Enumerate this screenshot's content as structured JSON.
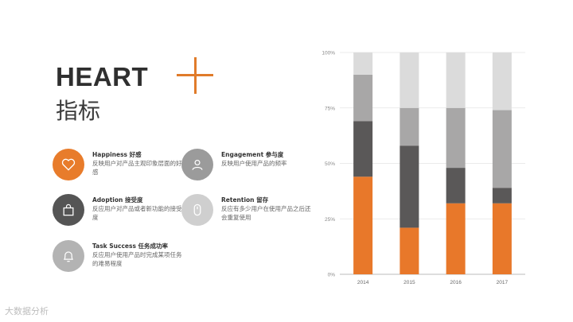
{
  "slide": {
    "title": "HEART",
    "subtitle": "指标"
  },
  "metrics": [
    {
      "name": "Happiness 好感",
      "desc": "反映用户对产品主观印象层面的好感",
      "icon": "heart-icon",
      "color": "#e87c2b"
    },
    {
      "name": "Engagement 参与度",
      "desc": "反映用户使用产品的频率",
      "icon": "users-icon",
      "color": "#9b9b9b"
    },
    {
      "name": "Adoption 接受度",
      "desc": "反应用户对产品或者新功能的接受度",
      "icon": "shopping-bag-icon",
      "color": "#555555"
    },
    {
      "name": "Retention 留存",
      "desc": "反应有多少用户在使用产品之后还会重复使用",
      "icon": "mouse-icon",
      "color": "#cfcfcf"
    },
    {
      "name": "Task Success 任务成功率",
      "desc": "反应用户使用产品时完成某项任务的难易程度",
      "icon": "bell-icon",
      "color": "#b3b3b3"
    }
  ],
  "watermark": "大数据分析",
  "chart_data": {
    "type": "bar",
    "stacked": true,
    "categories": [
      "2014",
      "2015",
      "2016",
      "2017"
    ],
    "series": [
      {
        "values": [
          44,
          21,
          32,
          32
        ],
        "color": "#e8782a"
      },
      {
        "values": [
          25,
          37,
          16,
          7
        ],
        "color": "#5a5858"
      },
      {
        "values": [
          21,
          17,
          27,
          35
        ],
        "color": "#a8a7a7"
      },
      {
        "values": [
          10,
          25,
          25,
          26
        ],
        "color": "#dbdbdb"
      }
    ],
    "yticks": [
      "0%",
      "25%",
      "50%",
      "75%",
      "100%"
    ],
    "ylim": [
      0,
      100
    ],
    "grid": true
  }
}
